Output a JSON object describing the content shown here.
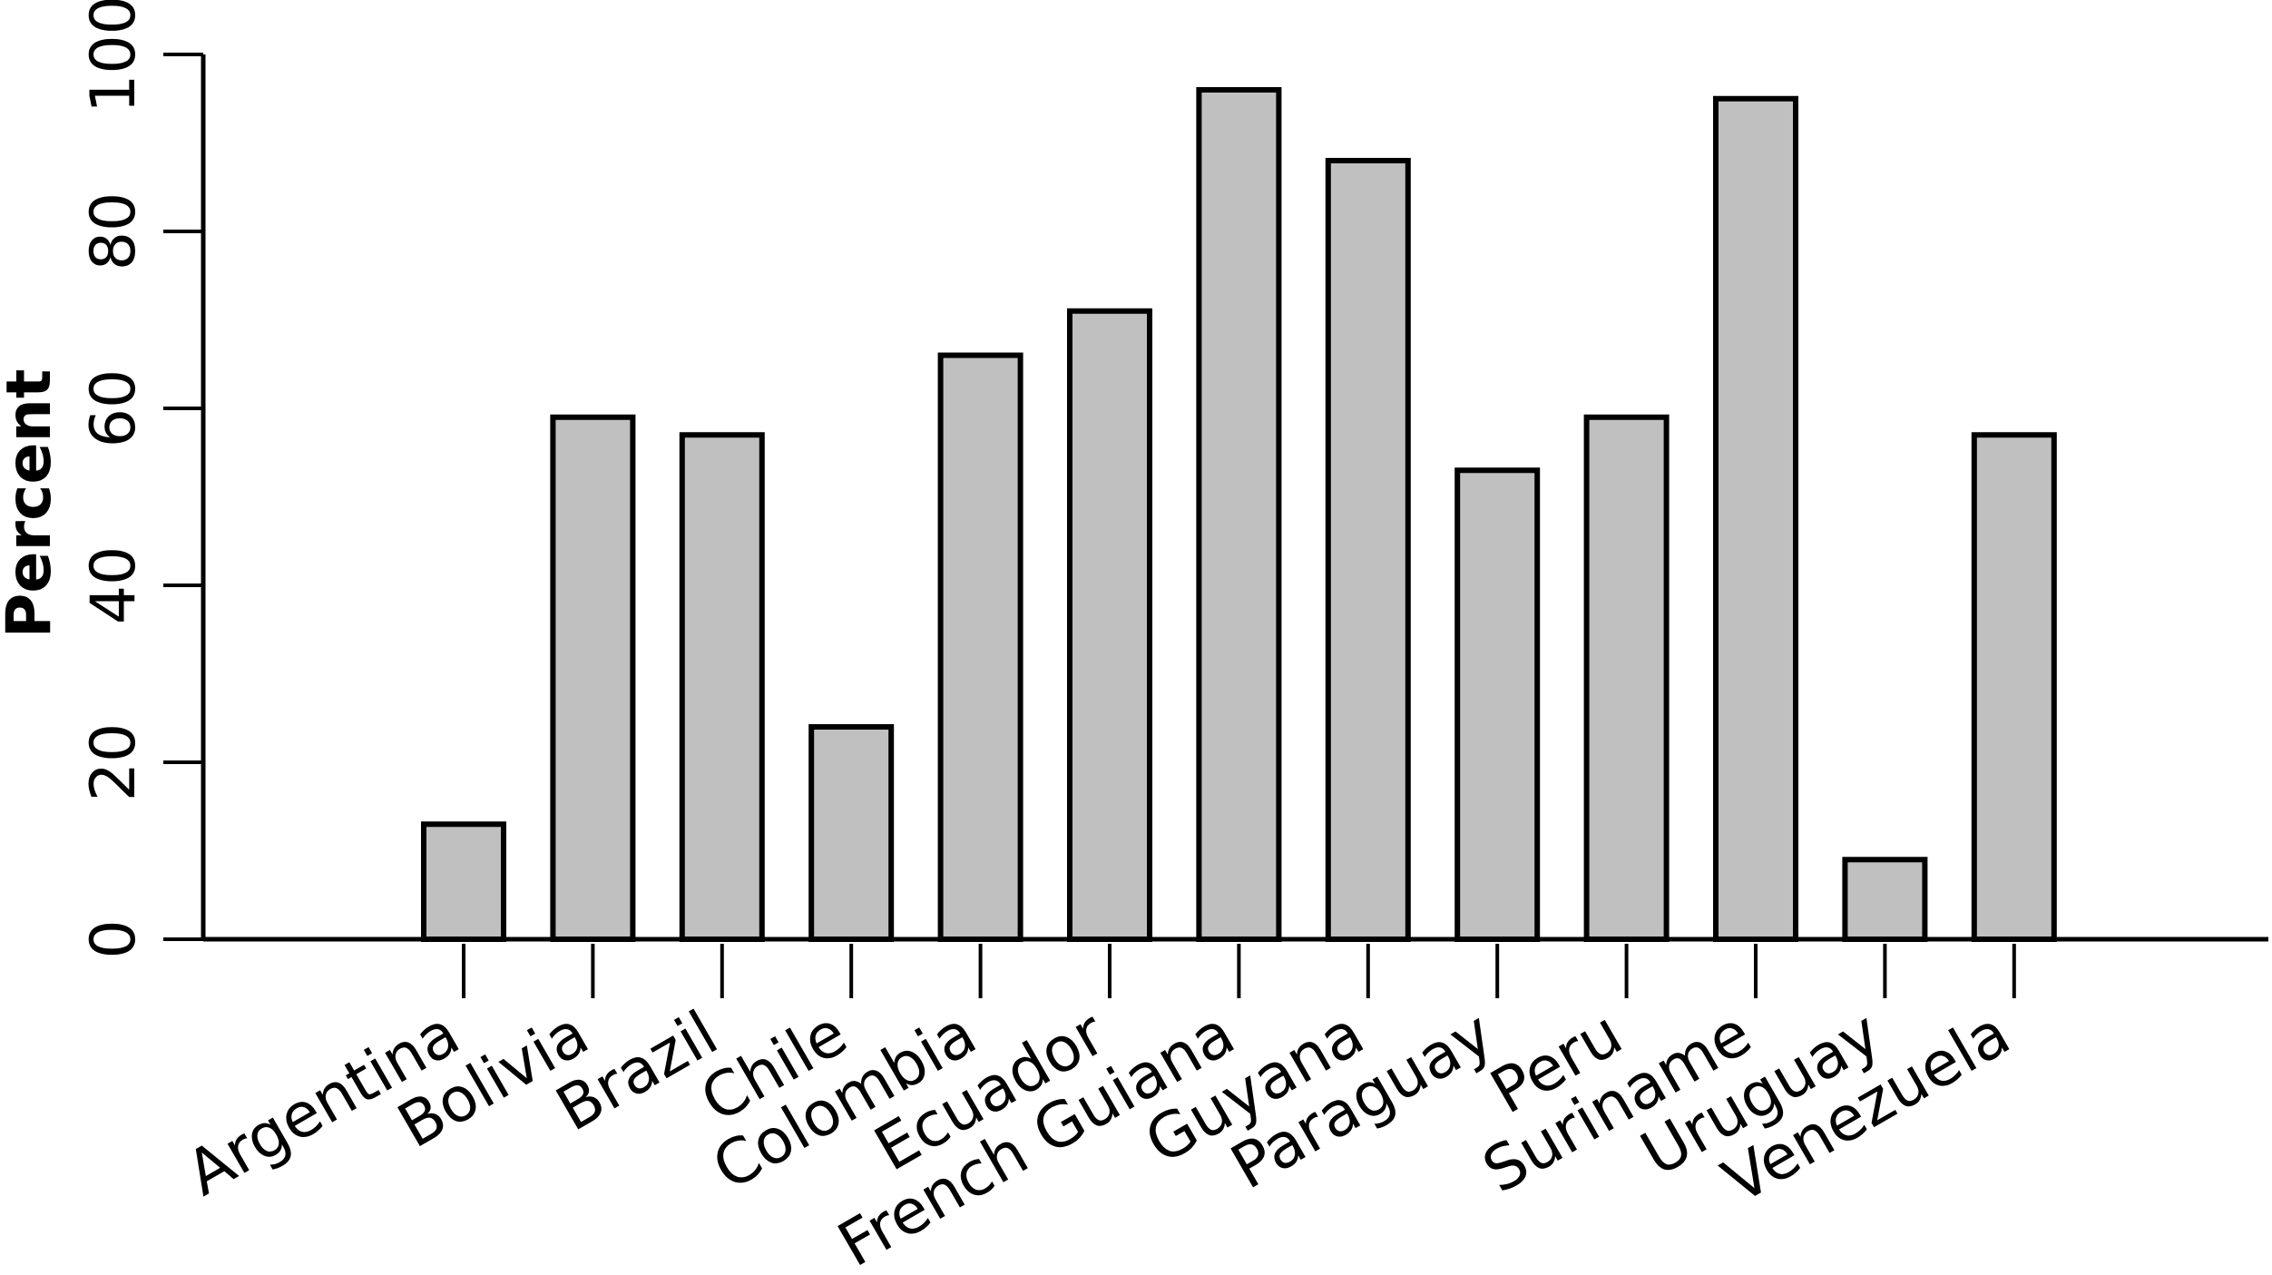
{
  "chart_data": {
    "type": "bar",
    "title": "",
    "xlabel": "",
    "ylabel": "Percent",
    "ylim": [
      0,
      100
    ],
    "yticks": [
      0,
      20,
      40,
      60,
      80,
      100
    ],
    "grid": false,
    "categories": [
      "Argentina",
      "Bolivia",
      "Brazil",
      "Chile",
      "Colombia",
      "Ecuador",
      "French Guiana",
      "Guyana",
      "Paraguay",
      "Peru",
      "Suriname",
      "Uruguay",
      "Venezuela"
    ],
    "values": [
      13,
      59,
      57,
      24,
      66,
      71,
      96,
      88,
      53,
      59,
      95,
      9,
      57
    ],
    "bar_color": "#c0c0c0",
    "edge_color": "#000000"
  }
}
